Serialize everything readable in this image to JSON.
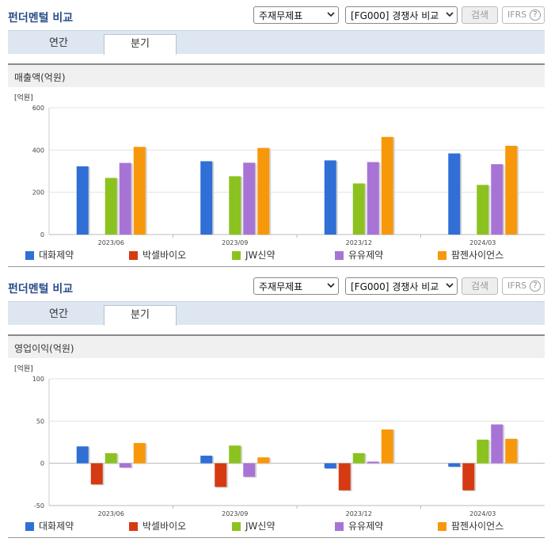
{
  "panels": [
    {
      "title": "펀더멘털 비교",
      "select_statement": "주재무제표",
      "select_compare": "[FG000] 경쟁사 비교",
      "search_label": "검색",
      "ifrs_label": "IFRS",
      "help_label": "?",
      "tabs": [
        "연간",
        "분기"
      ],
      "active_tab": 1,
      "metric_title": "매출액(억원)",
      "unit_label": "[억원]",
      "chart_data": {
        "type": "bar",
        "categories": [
          "2023/06",
          "2023/09",
          "2023/12",
          "2024/03"
        ],
        "series": [
          {
            "name": "대화제약",
            "color": "#2f6fd6",
            "values": [
              323,
              347,
              351,
              384
            ]
          },
          {
            "name": "박셀바이오",
            "color": "#d63a12",
            "values": [
              0,
              0,
              0,
              0
            ]
          },
          {
            "name": "JW신약",
            "color": "#8cc21f",
            "values": [
              268,
              276,
              242,
              235
            ]
          },
          {
            "name": "유유제약",
            "color": "#a774d6",
            "values": [
              339,
              340,
              343,
              333
            ]
          },
          {
            "name": "팜젠사이언스",
            "color": "#f7980b",
            "values": [
              415,
              410,
              462,
              420
            ]
          }
        ],
        "ylim": [
          0,
          600
        ],
        "yticks": [
          "0",
          "200",
          "400",
          "600"
        ],
        "ytick_values": [
          0,
          200,
          400,
          600
        ],
        "legend_position": "bottom"
      }
    },
    {
      "title": "펀더멘털 비교",
      "select_statement": "주재무제표",
      "select_compare": "[FG000] 경쟁사 비교",
      "search_label": "검색",
      "ifrs_label": "IFRS",
      "help_label": "?",
      "tabs": [
        "연간",
        "분기"
      ],
      "active_tab": 1,
      "metric_title": "영업이익(억원)",
      "unit_label": "[억원]",
      "chart_data": {
        "type": "bar",
        "categories": [
          "2023/06",
          "2023/09",
          "2023/12",
          "2024/03"
        ],
        "series": [
          {
            "name": "대화제약",
            "color": "#2f6fd6",
            "values": [
              20,
              9,
              -6,
              -4
            ]
          },
          {
            "name": "박셀바이오",
            "color": "#d63a12",
            "values": [
              -25,
              -28,
              -32,
              -32
            ]
          },
          {
            "name": "JW신약",
            "color": "#8cc21f",
            "values": [
              12,
              21,
              12,
              28
            ]
          },
          {
            "name": "유유제약",
            "color": "#a774d6",
            "values": [
              -5,
              -16,
              2,
              46
            ]
          },
          {
            "name": "팜젠사이언스",
            "color": "#f7980b",
            "values": [
              24,
              7,
              40,
              29
            ]
          }
        ],
        "ylim": [
          -50,
          100
        ],
        "yticks": [
          "-50",
          "0",
          "50",
          "100"
        ],
        "ytick_values": [
          -50,
          0,
          50,
          100
        ],
        "legend_position": "bottom"
      }
    }
  ]
}
